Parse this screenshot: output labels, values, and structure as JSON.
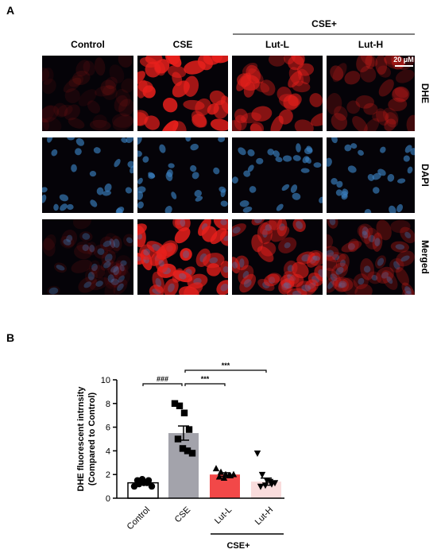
{
  "panel_a": {
    "label": "A",
    "group_label": "CSE+",
    "columns": [
      "Control",
      "CSE",
      "Lut-L",
      "Lut-H"
    ],
    "rows": [
      "DHE",
      "DAPI",
      "Merged"
    ],
    "scale_bar": "20 μM"
  },
  "chart_data": {
    "type": "bar",
    "panel_label": "B",
    "ylabel": [
      "DHE fluorescent intrnsity",
      "(Compared to Control)"
    ],
    "categories": [
      "Control",
      "CSE",
      "Lut-L",
      "Lut-H"
    ],
    "values": [
      1.3,
      5.5,
      2.0,
      1.4
    ],
    "errors": [
      0.15,
      0.6,
      0.15,
      0.3
    ],
    "points": [
      [
        1.0,
        1.2,
        1.3,
        1.5,
        1.5,
        1.6,
        1.3,
        1.0
      ],
      [
        8.0,
        7.8,
        7.2,
        5.8,
        5.0,
        4.2,
        4.0,
        3.8
      ],
      [
        2.5,
        2.2,
        2.0,
        1.9,
        1.8,
        1.7,
        1.9,
        2.0
      ],
      [
        3.8,
        2.0,
        1.5,
        1.2,
        1.0,
        1.1,
        1.4,
        1.3
      ]
    ],
    "markers": [
      "circle",
      "square",
      "triangle",
      "triangle-down"
    ],
    "colors": [
      "#ffffff",
      "#a3a3ab",
      "#f24848",
      "#f9dcdc"
    ],
    "ylim": [
      0,
      10
    ],
    "yticks": [
      0,
      2,
      4,
      6,
      8,
      10
    ],
    "group_label": "CSE+",
    "annotations": [
      {
        "text": "###",
        "from": 0,
        "to": 1
      },
      {
        "text": "***",
        "from": 1,
        "to": 2
      },
      {
        "text": "***",
        "from": 1,
        "to": 3
      }
    ]
  }
}
